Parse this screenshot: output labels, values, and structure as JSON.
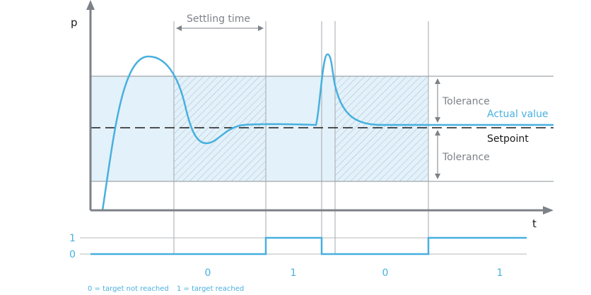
{
  "axes": {
    "y_label": "p",
    "x_label": "t"
  },
  "annotations": {
    "settling_time": "Settling time",
    "tolerance_upper": "Tolerance",
    "tolerance_lower": "Tolerance",
    "actual_value": "Actual value",
    "setpoint": "Setpoint"
  },
  "signal": {
    "level_high": "1",
    "level_low": "0",
    "segments": [
      "0",
      "1",
      "0",
      "1"
    ]
  },
  "legend": {
    "zero": "0 = target not reached",
    "one": "1 = target reached"
  },
  "colors": {
    "curve": "#47b0df",
    "band": "#e3f1fa",
    "axis": "#7d8288",
    "grid": "#9a9ea3"
  }
}
